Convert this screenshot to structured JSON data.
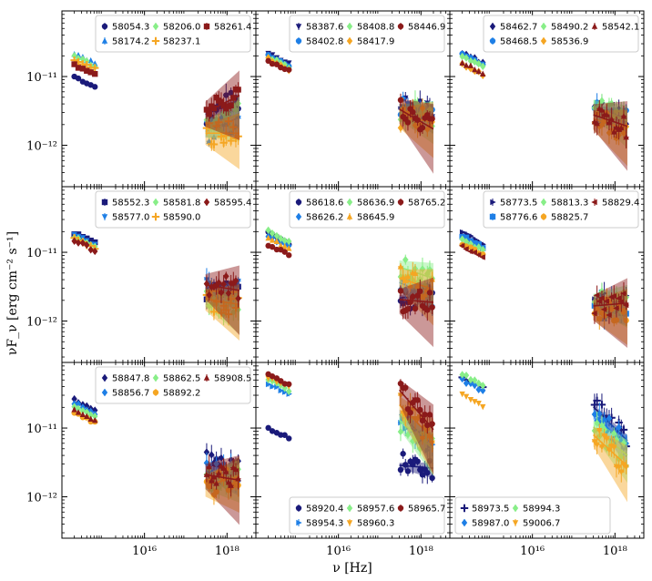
{
  "figure": {
    "ylabel": "νF_ν [erg cm⁻² s⁻¹]",
    "xlabel": "ν [Hz]"
  },
  "chart_data": {
    "type": "scatter",
    "grid": "3x3",
    "xscale": "log",
    "yscale": "log",
    "xlim": [
      100000000000000.0,
      5e+18
    ],
    "ylim": [
      2.5e-13,
      9e-11
    ],
    "x_ticks": [
      {
        "value": 1e+16,
        "label": "10^16"
      },
      {
        "value": 1e+18,
        "label": "10^18"
      }
    ],
    "y_ticks": [
      {
        "value": 1e-11,
        "label": "10^-11"
      },
      {
        "value": 1e-12,
        "label": "10^-12"
      }
    ],
    "colors": {
      "darkblue": "#1a1a7a",
      "blue": "#1e7fe6",
      "green": "#88ee88",
      "orange": "#f5a623",
      "darkred": "#8b1a1a"
    },
    "panels": [
      {
        "legend": "top-right",
        "series": [
          {
            "name": "58054.3",
            "color": "#1a1a7a",
            "marker": "circle",
            "uv": 1e-11,
            "x_amp": 3.2e-12,
            "slope": 0.25
          },
          {
            "name": "58174.2",
            "color": "#1e7fe6",
            "marker": "triangle-up",
            "uv": 2.2e-11,
            "x_amp": 1.8e-12,
            "slope": 0.25
          },
          {
            "name": "58206.0",
            "color": "#88ee88",
            "marker": "diamond",
            "uv": 2e-11,
            "x_amp": 2e-12,
            "slope": 0.25
          },
          {
            "name": "58237.1",
            "color": "#f5a623",
            "marker": "plus",
            "uv": 1.8e-11,
            "x_amp": 1.5e-12,
            "slope": 0.0
          },
          {
            "name": "58261.4",
            "color": "#8b1a1a",
            "marker": "square",
            "uv": 1.5e-11,
            "x_amp": 3.5e-12,
            "slope": 0.3
          }
        ]
      },
      {
        "legend": "top-right",
        "series": [
          {
            "name": "58387.6",
            "color": "#1a1a7a",
            "marker": "triangle-down",
            "uv": 2.2e-11,
            "x_amp": 3.5e-12,
            "slope": -0.1
          },
          {
            "name": "58402.8",
            "color": "#1e7fe6",
            "marker": "circle",
            "uv": 2e-11,
            "x_amp": 3.2e-12,
            "slope": -0.1
          },
          {
            "name": "58408.8",
            "color": "#88ee88",
            "marker": "diamond",
            "uv": 1.9e-11,
            "x_amp": 3e-12,
            "slope": -0.1
          },
          {
            "name": "58417.9",
            "color": "#f5a623",
            "marker": "diamond",
            "uv": 1.8e-11,
            "x_amp": 2.5e-12,
            "slope": -0.1
          },
          {
            "name": "58446.9",
            "color": "#8b1a1a",
            "marker": "circle",
            "uv": 1.7e-11,
            "x_amp": 2.8e-12,
            "slope": -0.35
          }
        ]
      },
      {
        "legend": "top-right",
        "series": [
          {
            "name": "58462.7",
            "color": "#1a1a7a",
            "marker": "diamond",
            "uv": 2.2e-11,
            "x_amp": 2.8e-12,
            "slope": -0.2
          },
          {
            "name": "58468.5",
            "color": "#1e7fe6",
            "marker": "circle",
            "uv": 2.1e-11,
            "x_amp": 3e-12,
            "slope": -0.15
          },
          {
            "name": "58490.2",
            "color": "#88ee88",
            "marker": "diamond",
            "uv": 2e-11,
            "x_amp": 3.2e-12,
            "slope": -0.25
          },
          {
            "name": "58536.9",
            "color": "#f5a623",
            "marker": "diamond",
            "uv": 1.5e-11,
            "x_amp": 2.2e-12,
            "slope": -0.2
          },
          {
            "name": "58542.1",
            "color": "#8b1a1a",
            "marker": "triangle-up",
            "uv": 1.6e-11,
            "x_amp": 2.5e-12,
            "slope": -0.2
          }
        ]
      },
      {
        "legend": "top-right",
        "series": [
          {
            "name": "58552.3",
            "color": "#1a1a7a",
            "marker": "square",
            "uv": 1.9e-11,
            "x_amp": 3e-12,
            "slope": 0.0
          },
          {
            "name": "58577.0",
            "color": "#1e7fe6",
            "marker": "triangle-down",
            "uv": 1.8e-11,
            "x_amp": 2.8e-12,
            "slope": -0.05
          },
          {
            "name": "58581.8",
            "color": "#88ee88",
            "marker": "diamond",
            "uv": 1.7e-11,
            "x_amp": 2e-12,
            "slope": -0.15
          },
          {
            "name": "58590.0",
            "color": "#f5a623",
            "marker": "plus",
            "uv": 1.6e-11,
            "x_amp": 2e-12,
            "slope": -0.1
          },
          {
            "name": "58595.4",
            "color": "#8b1a1a",
            "marker": "diamond",
            "uv": 1.5e-11,
            "x_amp": 3.2e-12,
            "slope": -0.1
          }
        ]
      },
      {
        "legend": "top-right",
        "series": [
          {
            "name": "58618.6",
            "color": "#1a1a7a",
            "marker": "circle",
            "uv": 1.9e-11,
            "x_amp": 2.2e-12,
            "slope": 0.0
          },
          {
            "name": "58626.2",
            "color": "#1e7fe6",
            "marker": "diamond",
            "uv": 1.7e-11,
            "x_amp": 3.2e-12,
            "slope": -0.25
          },
          {
            "name": "58636.9",
            "color": "#88ee88",
            "marker": "diamond",
            "uv": 2e-11,
            "x_amp": 5.5e-12,
            "slope": -0.2
          },
          {
            "name": "58645.9",
            "color": "#f5a623",
            "marker": "triangle-up",
            "uv": 1.6e-11,
            "x_amp": 3.8e-12,
            "slope": -0.2
          },
          {
            "name": "58765.2",
            "color": "#8b1a1a",
            "marker": "circle",
            "uv": 1.3e-11,
            "x_amp": 2e-12,
            "slope": -0.05
          }
        ]
      },
      {
        "legend": "top-right",
        "series": [
          {
            "name": "58773.5",
            "color": "#1a1a7a",
            "marker": "triangle-right",
            "uv": 1.9e-11,
            "x_amp": 1.8e-12,
            "slope": 0.0
          },
          {
            "name": "58776.6",
            "color": "#1e7fe6",
            "marker": "square",
            "uv": 1.7e-11,
            "x_amp": 1.6e-12,
            "slope": 0.0
          },
          {
            "name": "58813.3",
            "color": "#88ee88",
            "marker": "diamond",
            "uv": 1.5e-11,
            "x_amp": 2e-12,
            "slope": 0.0
          },
          {
            "name": "58825.7",
            "color": "#f5a623",
            "marker": "circle",
            "uv": 1.3e-11,
            "x_amp": 1.5e-12,
            "slope": 0.0
          },
          {
            "name": "58829.4",
            "color": "#8b1a1a",
            "marker": "triangle-left",
            "uv": 1.2e-11,
            "x_amp": 1.7e-12,
            "slope": 0.05
          }
        ]
      },
      {
        "legend": "top-right",
        "series": [
          {
            "name": "58847.8",
            "color": "#1a1a7a",
            "marker": "diamond",
            "uv": 2.6e-11,
            "x_amp": 2.8e-12,
            "slope": -0.15
          },
          {
            "name": "58856.7",
            "color": "#1e7fe6",
            "marker": "diamond",
            "uv": 2.3e-11,
            "x_amp": 2.2e-12,
            "slope": -0.1
          },
          {
            "name": "58862.5",
            "color": "#88ee88",
            "marker": "diamond",
            "uv": 2e-11,
            "x_amp": 1.8e-12,
            "slope": 0.1
          },
          {
            "name": "58892.2",
            "color": "#f5a623",
            "marker": "circle",
            "uv": 1.7e-11,
            "x_amp": 1.6e-12,
            "slope": 0.15
          },
          {
            "name": "58908.5",
            "color": "#8b1a1a",
            "marker": "triangle-up",
            "uv": 1.8e-11,
            "x_amp": 2e-12,
            "slope": -0.1
          }
        ]
      },
      {
        "legend": "bottom-right",
        "series": [
          {
            "name": "58920.4",
            "color": "#1a1a7a",
            "marker": "circle",
            "uv": 1e-11,
            "x_amp": 2.8e-12,
            "slope": -0.05
          },
          {
            "name": "58954.3",
            "color": "#1e7fe6",
            "marker": "triangle-right",
            "uv": 4.5e-11,
            "x_amp": 1.2e-11,
            "slope": -0.55
          },
          {
            "name": "58957.6",
            "color": "#88ee88",
            "marker": "diamond",
            "uv": 5e-11,
            "x_amp": 1e-11,
            "slope": -0.5
          },
          {
            "name": "58960.3",
            "color": "#f5a623",
            "marker": "triangle-down",
            "uv": 5.5e-11,
            "x_amp": 1.6e-11,
            "slope": -0.6
          },
          {
            "name": "58965.7",
            "color": "#8b1a1a",
            "marker": "circle",
            "uv": 6e-11,
            "x_amp": 2.5e-11,
            "slope": -0.7
          }
        ]
      },
      {
        "legend": "bottom-left",
        "series": [
          {
            "name": "58973.5",
            "color": "#1a1a7a",
            "marker": "plus",
            "uv": 5.5e-11,
            "x_amp": 1.5e-11,
            "slope": -0.6
          },
          {
            "name": "58987.0",
            "color": "#1e7fe6",
            "marker": "diamond",
            "uv": 5e-11,
            "x_amp": 1.2e-11,
            "slope": -0.6
          },
          {
            "name": "58994.3",
            "color": "#88ee88",
            "marker": "diamond",
            "uv": 6e-11,
            "x_amp": 8e-12,
            "slope": -0.5
          },
          {
            "name": "59006.7",
            "color": "#f5a623",
            "marker": "triangle-down",
            "uv": 3e-11,
            "x_amp": 6e-12,
            "slope": -0.55
          }
        ]
      }
    ]
  }
}
